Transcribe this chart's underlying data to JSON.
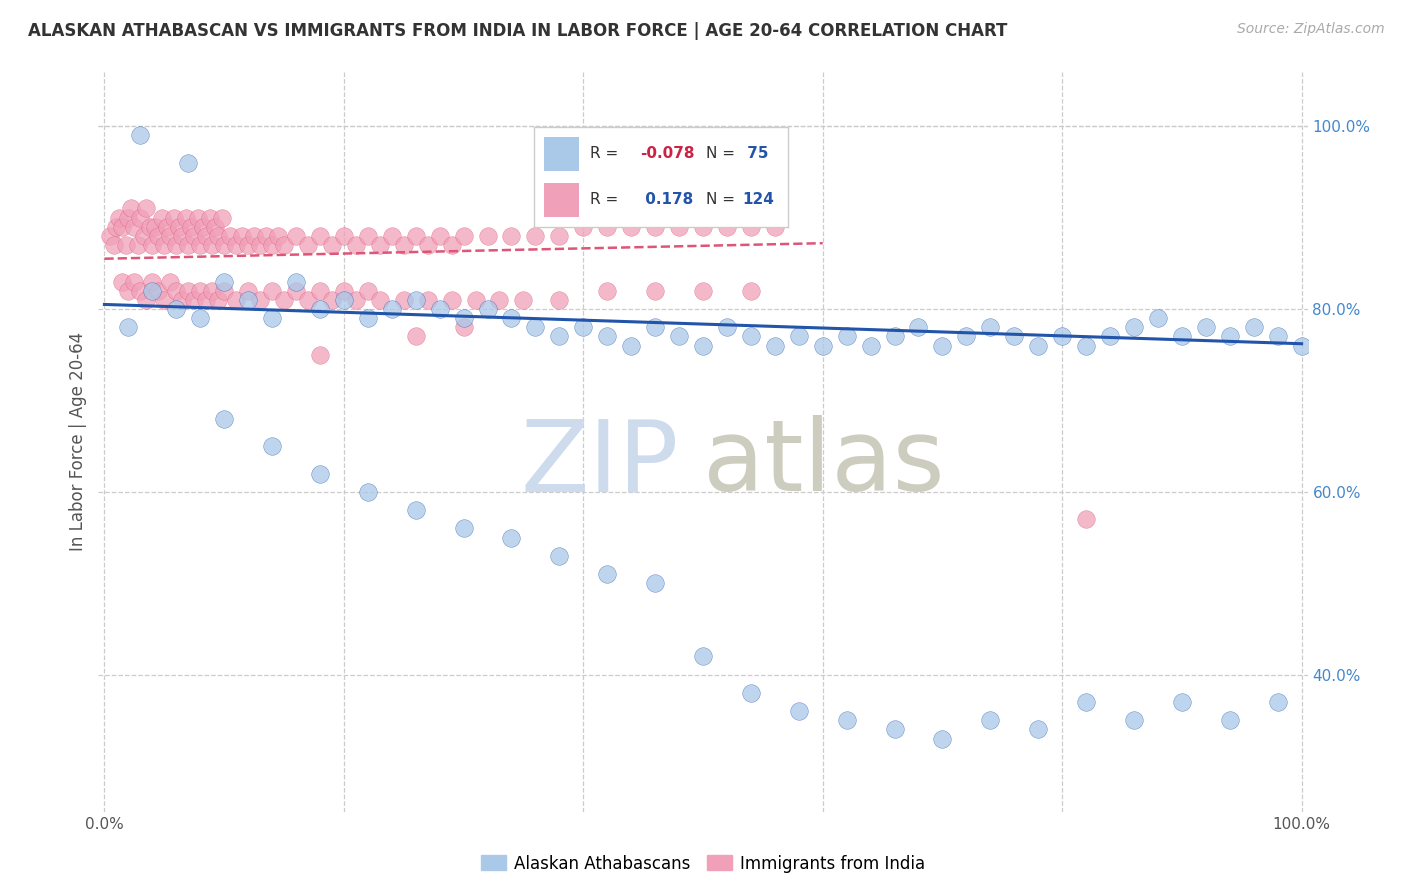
{
  "title": "ALASKAN ATHABASCAN VS IMMIGRANTS FROM INDIA IN LABOR FORCE | AGE 20-64 CORRELATION CHART",
  "source": "Source: ZipAtlas.com",
  "ylabel": "In Labor Force | Age 20-64",
  "xlim": [
    -0.005,
    1.005
  ],
  "ylim": [
    0.25,
    1.06
  ],
  "yticks": [
    0.4,
    0.6,
    0.8,
    1.0
  ],
  "ytick_labels": [
    "40.0%",
    "60.0%",
    "80.0%",
    "100.0%"
  ],
  "blue_color": "#aac8e8",
  "pink_color": "#f0a0b8",
  "blue_line_color": "#2255aa",
  "pink_line_color": "#dd5577",
  "title_color": "#333333",
  "source_color": "#aaaaaa",
  "grid_color": "#cccccc",
  "background_color": "#ffffff",
  "blue_trend_x": [
    0.0,
    1.0
  ],
  "blue_trend_y": [
    0.805,
    0.762
  ],
  "pink_trend_x": [
    0.0,
    0.6
  ],
  "pink_trend_y": [
    0.855,
    0.872
  ],
  "watermark_zip_color": "#c8d8ec",
  "watermark_atlas_color": "#c8c8b8",
  "blue_scatter_x": [
    0.02,
    0.04,
    0.06,
    0.08,
    0.1,
    0.12,
    0.14,
    0.16,
    0.18,
    0.2,
    0.22,
    0.24,
    0.26,
    0.28,
    0.3,
    0.32,
    0.34,
    0.36,
    0.38,
    0.4,
    0.42,
    0.44,
    0.46,
    0.48,
    0.5,
    0.52,
    0.54,
    0.56,
    0.58,
    0.6,
    0.62,
    0.64,
    0.66,
    0.68,
    0.7,
    0.72,
    0.74,
    0.76,
    0.78,
    0.8,
    0.82,
    0.84,
    0.86,
    0.88,
    0.9,
    0.92,
    0.94,
    0.96,
    0.98,
    1.0,
    0.1,
    0.14,
    0.18,
    0.22,
    0.26,
    0.3,
    0.34,
    0.38,
    0.42,
    0.46,
    0.5,
    0.54,
    0.58,
    0.62,
    0.66,
    0.7,
    0.74,
    0.78,
    0.82,
    0.86,
    0.9,
    0.94,
    0.98,
    0.03,
    0.07
  ],
  "blue_scatter_y": [
    0.78,
    0.82,
    0.8,
    0.79,
    0.83,
    0.81,
    0.79,
    0.83,
    0.8,
    0.81,
    0.79,
    0.8,
    0.81,
    0.8,
    0.79,
    0.8,
    0.79,
    0.78,
    0.77,
    0.78,
    0.77,
    0.76,
    0.78,
    0.77,
    0.76,
    0.78,
    0.77,
    0.76,
    0.77,
    0.76,
    0.77,
    0.76,
    0.77,
    0.78,
    0.76,
    0.77,
    0.78,
    0.77,
    0.76,
    0.77,
    0.76,
    0.77,
    0.78,
    0.79,
    0.77,
    0.78,
    0.77,
    0.78,
    0.77,
    0.76,
    0.68,
    0.65,
    0.62,
    0.6,
    0.58,
    0.56,
    0.55,
    0.53,
    0.51,
    0.5,
    0.42,
    0.38,
    0.36,
    0.35,
    0.34,
    0.33,
    0.35,
    0.34,
    0.37,
    0.35,
    0.37,
    0.35,
    0.37,
    0.99,
    0.96
  ],
  "pink_scatter_x": [
    0.005,
    0.008,
    0.01,
    0.012,
    0.015,
    0.018,
    0.02,
    0.022,
    0.025,
    0.028,
    0.03,
    0.033,
    0.035,
    0.038,
    0.04,
    0.042,
    0.045,
    0.048,
    0.05,
    0.052,
    0.055,
    0.058,
    0.06,
    0.062,
    0.065,
    0.068,
    0.07,
    0.072,
    0.075,
    0.078,
    0.08,
    0.082,
    0.085,
    0.088,
    0.09,
    0.092,
    0.095,
    0.098,
    0.1,
    0.105,
    0.11,
    0.115,
    0.12,
    0.125,
    0.13,
    0.135,
    0.14,
    0.145,
    0.15,
    0.16,
    0.17,
    0.18,
    0.19,
    0.2,
    0.21,
    0.22,
    0.23,
    0.24,
    0.25,
    0.26,
    0.27,
    0.28,
    0.29,
    0.3,
    0.32,
    0.34,
    0.36,
    0.38,
    0.4,
    0.42,
    0.44,
    0.46,
    0.48,
    0.5,
    0.52,
    0.54,
    0.56,
    0.015,
    0.02,
    0.025,
    0.03,
    0.035,
    0.04,
    0.045,
    0.05,
    0.055,
    0.06,
    0.065,
    0.07,
    0.075,
    0.08,
    0.085,
    0.09,
    0.095,
    0.1,
    0.11,
    0.12,
    0.13,
    0.14,
    0.15,
    0.16,
    0.17,
    0.18,
    0.19,
    0.2,
    0.21,
    0.22,
    0.23,
    0.25,
    0.27,
    0.29,
    0.31,
    0.33,
    0.35,
    0.38,
    0.42,
    0.46,
    0.5,
    0.54,
    0.82,
    0.26,
    0.3,
    0.18
  ],
  "pink_scatter_y": [
    0.88,
    0.87,
    0.89,
    0.9,
    0.89,
    0.87,
    0.9,
    0.91,
    0.89,
    0.87,
    0.9,
    0.88,
    0.91,
    0.89,
    0.87,
    0.89,
    0.88,
    0.9,
    0.87,
    0.89,
    0.88,
    0.9,
    0.87,
    0.89,
    0.88,
    0.9,
    0.87,
    0.89,
    0.88,
    0.9,
    0.87,
    0.89,
    0.88,
    0.9,
    0.87,
    0.89,
    0.88,
    0.9,
    0.87,
    0.88,
    0.87,
    0.88,
    0.87,
    0.88,
    0.87,
    0.88,
    0.87,
    0.88,
    0.87,
    0.88,
    0.87,
    0.88,
    0.87,
    0.88,
    0.87,
    0.88,
    0.87,
    0.88,
    0.87,
    0.88,
    0.87,
    0.88,
    0.87,
    0.88,
    0.88,
    0.88,
    0.88,
    0.88,
    0.89,
    0.89,
    0.89,
    0.89,
    0.89,
    0.89,
    0.89,
    0.89,
    0.89,
    0.83,
    0.82,
    0.83,
    0.82,
    0.81,
    0.83,
    0.82,
    0.81,
    0.83,
    0.82,
    0.81,
    0.82,
    0.81,
    0.82,
    0.81,
    0.82,
    0.81,
    0.82,
    0.81,
    0.82,
    0.81,
    0.82,
    0.81,
    0.82,
    0.81,
    0.82,
    0.81,
    0.82,
    0.81,
    0.82,
    0.81,
    0.81,
    0.81,
    0.81,
    0.81,
    0.81,
    0.81,
    0.81,
    0.82,
    0.82,
    0.82,
    0.82,
    0.57,
    0.77,
    0.78,
    0.75
  ]
}
